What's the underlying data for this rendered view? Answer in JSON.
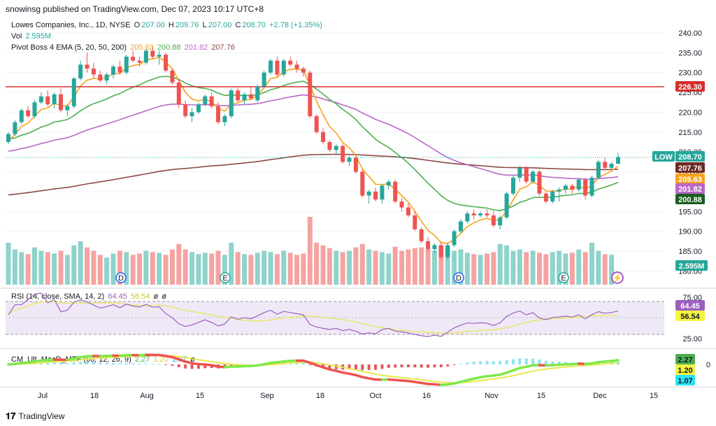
{
  "header": {
    "published": "snowinsg published on TradingView.com, Dec 07, 2023 10:17 UTC+8"
  },
  "legend": {
    "symbol": "Lowes Companies, Inc., 1D, NYSE",
    "o_label": "O",
    "o_val": "207.00",
    "h_label": "H",
    "h_val": "209.76",
    "l_label": "L",
    "l_val": "207.00",
    "c_label": "C",
    "c_val": "208.70",
    "change": "+2.78 (+1.35%)",
    "vol_label": "Vol",
    "vol_val": "2.595M",
    "ema_label": "Pivot Boss 4 EMA (5, 20, 50, 200)",
    "ema_vals": [
      "205.63",
      "200.88",
      "201.82",
      "207.76"
    ],
    "rsi_label": "RSI (14, close, SMA, 14, 2)",
    "rsi_vals": [
      "64.45",
      "56.54",
      "ø",
      "ø"
    ],
    "macd_label": "CM_Ult_MacD_MTF (60, 12, 26, 9)",
    "macd_vals": [
      "2.27",
      "1.20",
      "1.07",
      "ø"
    ]
  },
  "colors": {
    "up": "#26a69a",
    "down": "#ef5350",
    "ema5": "#f7a21b",
    "ema20": "#4caf50",
    "ema50": "#ba68c8",
    "ema200": "#8d4a45",
    "resistance": "#d32f2f",
    "rsi": "#9c5fbf",
    "rsi_sma": "#e6e84a"
  },
  "chart_data": {
    "type": "candlestick",
    "price_axis": {
      "ticks": [
        "240.00",
        "235.00",
        "230.00",
        "225.00",
        "220.00",
        "215.00",
        "210.00",
        "205.00",
        "200.00",
        "195.00",
        "190.00",
        "185.00",
        "180.00"
      ],
      "range": [
        178,
        242
      ]
    },
    "x_ticks": [
      "Jul",
      "18",
      "Aug",
      "15",
      "Sep",
      "18",
      "Oct",
      "16",
      "Nov",
      "15",
      "Dec",
      "15"
    ],
    "resistance_level": "226.30",
    "last_price": "208.70",
    "last_price_tag": "LOW",
    "ema_tags": [
      "207.76",
      "205.63",
      "201.82",
      "200.88"
    ],
    "volume_tag": "2.595M",
    "rsi_ticks": [
      "75.00",
      "25.00"
    ],
    "rsi_tags": [
      "64.45",
      "56.54"
    ],
    "macd_tags": [
      "2.27",
      "1.20",
      "1.07"
    ],
    "macd_axis": "0",
    "events": [
      "D",
      "E",
      "D",
      "E"
    ],
    "candles": [
      [
        212.5,
        215.0,
        212.0,
        214.5
      ],
      [
        214.5,
        218.0,
        214.0,
        217.5
      ],
      [
        217.5,
        221.0,
        217.0,
        220.5
      ],
      [
        220.5,
        221.5,
        218.5,
        219.0
      ],
      [
        219.0,
        223.0,
        218.5,
        222.5
      ],
      [
        222.5,
        225.0,
        222.0,
        224.0
      ],
      [
        224.0,
        225.5,
        221.5,
        222.0
      ],
      [
        222.0,
        225.0,
        221.0,
        224.5
      ],
      [
        224.5,
        226.0,
        220.0,
        220.5
      ],
      [
        220.5,
        222.0,
        219.0,
        221.5
      ],
      [
        221.5,
        229.0,
        221.0,
        228.5
      ],
      [
        228.5,
        233.0,
        228.0,
        232.0
      ],
      [
        232.0,
        235.0,
        230.0,
        231.0
      ],
      [
        231.0,
        232.5,
        228.5,
        229.5
      ],
      [
        229.5,
        230.5,
        227.5,
        228.0
      ],
      [
        228.0,
        230.0,
        227.0,
        229.5
      ],
      [
        229.5,
        232.0,
        228.5,
        231.5
      ],
      [
        231.5,
        233.0,
        229.5,
        230.0
      ],
      [
        230.0,
        234.5,
        229.5,
        234.0
      ],
      [
        234.0,
        235.5,
        232.5,
        233.0
      ],
      [
        233.0,
        234.0,
        231.5,
        232.5
      ],
      [
        232.5,
        236.0,
        232.0,
        235.5
      ],
      [
        235.5,
        236.5,
        233.5,
        234.0
      ],
      [
        234.0,
        235.5,
        232.0,
        234.5
      ],
      [
        234.5,
        235.0,
        230.0,
        230.5
      ],
      [
        230.5,
        231.0,
        227.0,
        227.5
      ],
      [
        227.5,
        228.5,
        221.0,
        222.0
      ],
      [
        222.0,
        223.0,
        218.5,
        219.0
      ],
      [
        219.0,
        221.0,
        217.5,
        220.0
      ],
      [
        220.0,
        222.5,
        219.5,
        222.0
      ],
      [
        222.0,
        224.5,
        221.5,
        224.0
      ],
      [
        224.0,
        225.0,
        221.0,
        221.5
      ],
      [
        221.5,
        222.5,
        217.0,
        217.5
      ],
      [
        217.5,
        219.5,
        216.5,
        219.0
      ],
      [
        219.0,
        226.0,
        218.5,
        225.5
      ],
      [
        225.5,
        226.5,
        222.5,
        223.0
      ],
      [
        223.0,
        225.0,
        222.0,
        224.5
      ],
      [
        224.5,
        226.5,
        223.0,
        223.5
      ],
      [
        223.0,
        227.0,
        222.5,
        226.5
      ],
      [
        226.5,
        230.5,
        226.0,
        230.0
      ],
      [
        230.0,
        233.5,
        229.5,
        233.0
      ],
      [
        233.0,
        234.0,
        229.0,
        229.5
      ],
      [
        229.5,
        233.5,
        229.0,
        233.0
      ],
      [
        233.0,
        234.0,
        231.5,
        232.0
      ],
      [
        232.0,
        233.0,
        230.0,
        231.0
      ],
      [
        231.0,
        231.5,
        229.0,
        230.0
      ],
      [
        230.0,
        230.5,
        218.5,
        219.0
      ],
      [
        219.0,
        219.5,
        214.5,
        215.0
      ],
      [
        215.0,
        216.0,
        212.0,
        212.5
      ],
      [
        212.5,
        213.0,
        210.0,
        210.5
      ],
      [
        210.5,
        212.0,
        209.5,
        211.5
      ],
      [
        211.5,
        212.0,
        207.0,
        207.5
      ],
      [
        207.5,
        209.0,
        206.5,
        208.5
      ],
      [
        208.5,
        209.0,
        204.5,
        205.0
      ],
      [
        205.0,
        205.5,
        198.5,
        199.0
      ],
      [
        199.0,
        200.5,
        197.0,
        200.0
      ],
      [
        200.0,
        201.0,
        197.5,
        198.0
      ],
      [
        198.0,
        202.0,
        197.0,
        201.5
      ],
      [
        201.5,
        203.0,
        200.5,
        202.5
      ],
      [
        202.5,
        203.0,
        197.0,
        197.5
      ],
      [
        197.5,
        198.5,
        195.0,
        196.0
      ],
      [
        196.0,
        197.0,
        193.5,
        194.0
      ],
      [
        194.0,
        195.0,
        190.0,
        190.5
      ],
      [
        190.5,
        191.0,
        187.0,
        187.5
      ],
      [
        187.5,
        188.5,
        185.0,
        185.5
      ],
      [
        185.5,
        187.0,
        184.5,
        186.5
      ],
      [
        186.5,
        187.5,
        183.0,
        183.5
      ],
      [
        183.5,
        187.0,
        183.0,
        186.5
      ],
      [
        186.5,
        190.5,
        186.0,
        190.0
      ],
      [
        190.0,
        193.0,
        189.5,
        192.5
      ],
      [
        192.5,
        195.0,
        192.0,
        194.5
      ],
      [
        194.5,
        195.5,
        193.0,
        194.0
      ],
      [
        194.0,
        195.0,
        193.5,
        194.5
      ],
      [
        194.5,
        195.5,
        193.5,
        194.0
      ],
      [
        194.0,
        195.0,
        191.0,
        191.5
      ],
      [
        191.5,
        194.0,
        190.5,
        193.5
      ],
      [
        193.5,
        200.0,
        193.0,
        199.5
      ],
      [
        199.5,
        204.0,
        199.0,
        203.5
      ],
      [
        203.5,
        206.5,
        202.5,
        206.0
      ],
      [
        206.0,
        206.5,
        202.0,
        202.5
      ],
      [
        202.5,
        205.5,
        202.0,
        205.0
      ],
      [
        205.0,
        205.5,
        199.0,
        199.5
      ],
      [
        199.5,
        200.0,
        197.0,
        197.5
      ],
      [
        197.5,
        200.5,
        197.0,
        200.0
      ],
      [
        200.0,
        201.0,
        197.5,
        200.5
      ],
      [
        200.5,
        202.0,
        199.5,
        201.5
      ],
      [
        201.5,
        202.0,
        199.5,
        200.5
      ],
      [
        200.5,
        203.5,
        200.0,
        203.0
      ],
      [
        203.0,
        203.5,
        198.0,
        199.0
      ],
      [
        199.0,
        204.0,
        198.5,
        203.5
      ],
      [
        203.5,
        208.0,
        203.0,
        207.5
      ],
      [
        207.5,
        208.5,
        205.5,
        206.0
      ],
      [
        206.0,
        207.5,
        205.5,
        207.0
      ],
      [
        207.0,
        209.8,
        207.0,
        208.7
      ]
    ],
    "volume": [
      0.62,
      0.52,
      0.48,
      0.45,
      0.55,
      0.5,
      0.48,
      0.46,
      0.5,
      0.44,
      0.58,
      0.64,
      0.55,
      0.5,
      0.44,
      0.4,
      0.46,
      0.5,
      0.48,
      0.44,
      0.46,
      0.5,
      0.48,
      0.47,
      0.44,
      0.52,
      0.6,
      0.52,
      0.48,
      0.45,
      0.47,
      0.46,
      0.5,
      0.44,
      0.62,
      0.48,
      0.45,
      0.44,
      0.47,
      0.5,
      0.48,
      0.45,
      0.5,
      0.47,
      0.44,
      0.46,
      1.0,
      0.62,
      0.58,
      0.54,
      0.5,
      0.48,
      0.5,
      0.55,
      0.6,
      0.52,
      0.5,
      0.48,
      0.46,
      0.56,
      0.5,
      0.52,
      0.54,
      0.55,
      0.52,
      0.5,
      0.58,
      0.55,
      0.5,
      0.52,
      0.47,
      0.45,
      0.44,
      0.46,
      0.48,
      0.6,
      0.58,
      0.5,
      0.52,
      0.48,
      0.5,
      0.47,
      0.45,
      0.48,
      0.5,
      0.46,
      0.47,
      0.52,
      0.48,
      0.62,
      0.5,
      0.45,
      0.44
    ]
  }
}
